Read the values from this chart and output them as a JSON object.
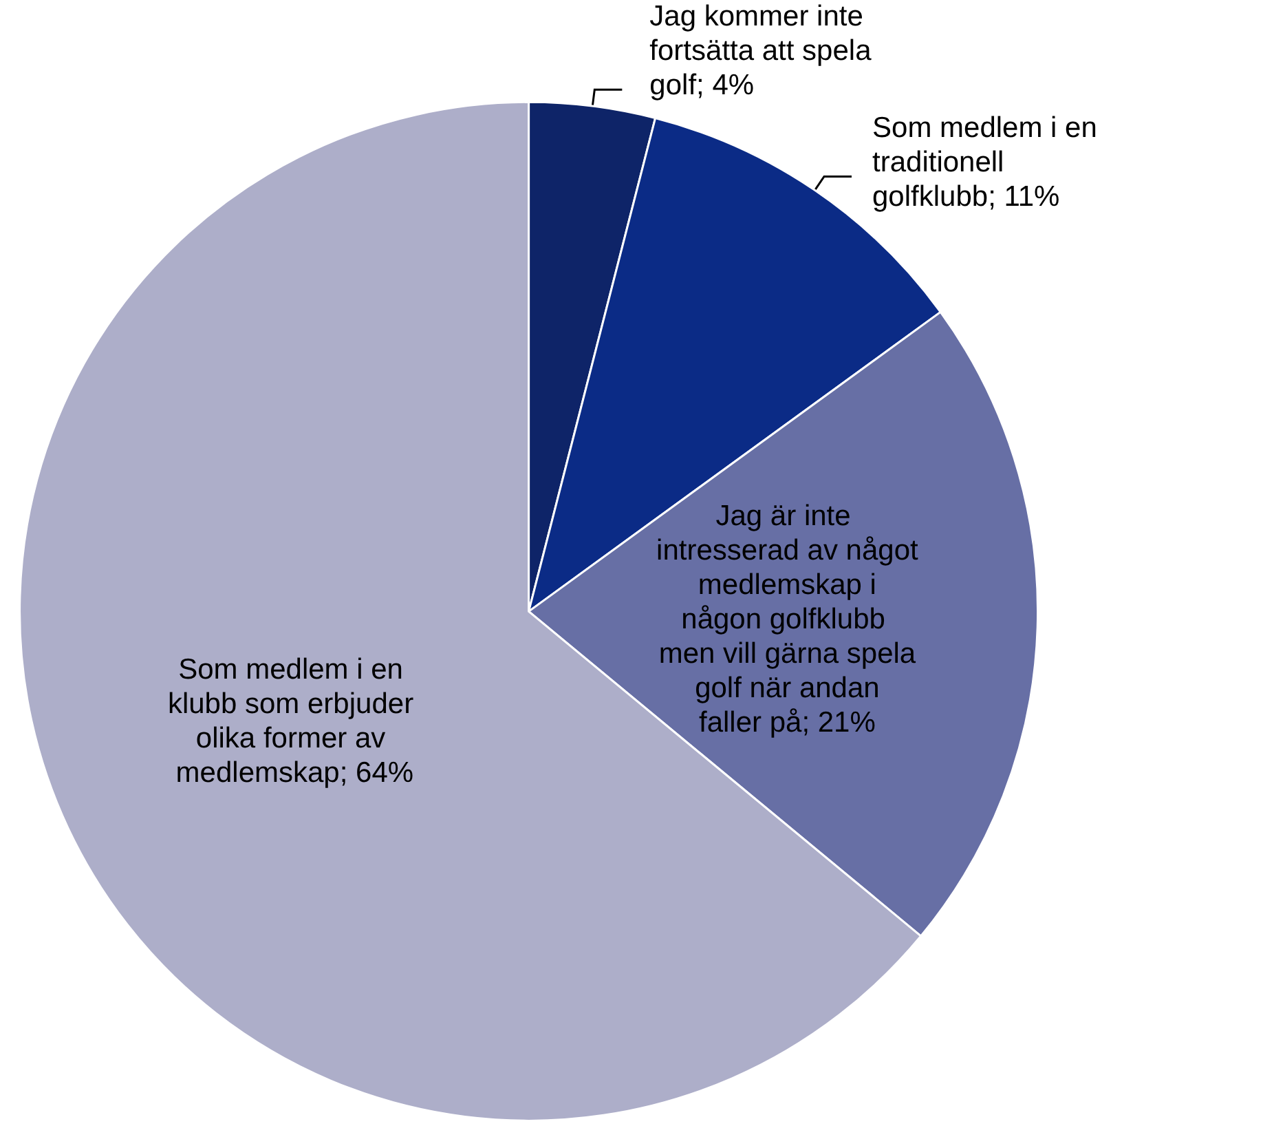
{
  "chart_data": {
    "type": "pie",
    "categories": [
      "Jag kommer inte fortsätta att spela golf",
      "Som medlem i en traditionell golfklubb",
      "Jag är inte intresserad av något medlemskap i någon golfklubb men vill gärna spela golf när andan faller på",
      "Som medlem i en klubb som erbjuder olika former av medlemskap"
    ],
    "values": [
      4,
      11,
      21,
      64
    ],
    "value_labels": [
      "4%",
      "11%",
      "21%",
      "64%"
    ],
    "colors": [
      "#0e2468",
      "#0b2b86",
      "#676fa5",
      "#adaec9"
    ]
  }
}
